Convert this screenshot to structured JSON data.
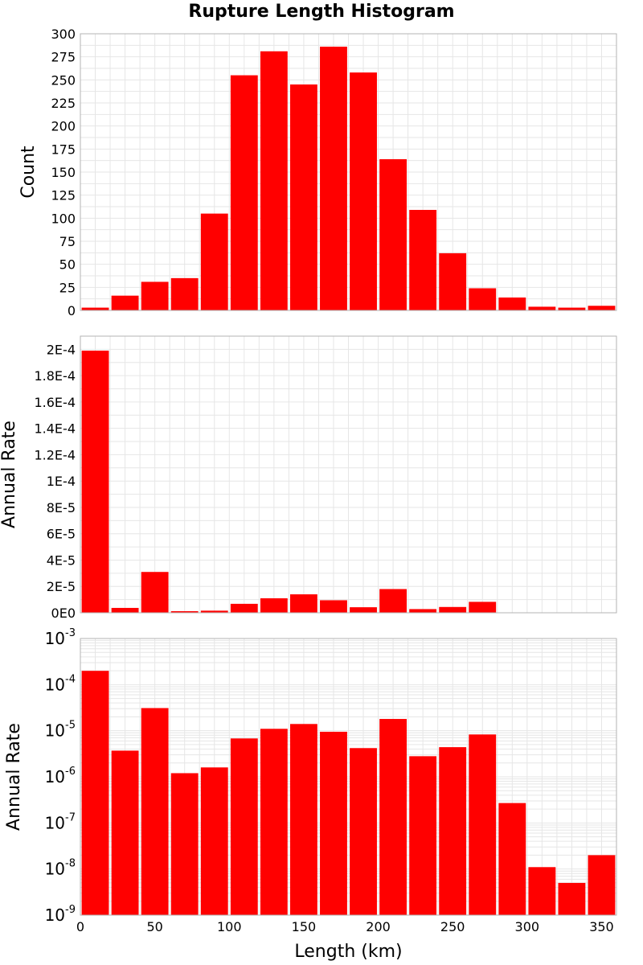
{
  "title": "Rupture Length Histogram",
  "colors": {
    "bar": "#ff0000",
    "grid": "#e6e6e6",
    "frame": "#b3b3b3"
  },
  "chart_data": [
    {
      "type": "bar",
      "panel": "count",
      "ylabel": "Count",
      "xlim": [
        0,
        360
      ],
      "ylim": [
        0,
        300
      ],
      "ytick_labels": [
        "0",
        "25",
        "50",
        "75",
        "100",
        "125",
        "150",
        "175",
        "200",
        "225",
        "250",
        "275",
        "300"
      ],
      "ytick_values": [
        0,
        25,
        50,
        75,
        100,
        125,
        150,
        175,
        200,
        225,
        250,
        275,
        300
      ],
      "bin_width": 20,
      "x": [
        10,
        30,
        50,
        70,
        90,
        110,
        130,
        150,
        170,
        190,
        210,
        230,
        250,
        270,
        290,
        310,
        330,
        350
      ],
      "values": [
        3,
        16,
        31,
        35,
        105,
        255,
        281,
        245,
        286,
        258,
        164,
        109,
        62,
        24,
        14,
        4,
        3,
        5
      ],
      "grid": true
    },
    {
      "type": "bar",
      "panel": "rate-linear",
      "ylabel": "Annual Rate",
      "xlim": [
        0,
        360
      ],
      "ylim": [
        0,
        0.00021
      ],
      "ytick_labels": [
        "0E0",
        "2E-5",
        "4E-5",
        "6E-5",
        "8E-5",
        "1E-4",
        "1.2E-4",
        "1.4E-4",
        "1.6E-4",
        "1.8E-4",
        "2E-4"
      ],
      "ytick_values": [
        0,
        2e-05,
        4e-05,
        6e-05,
        8e-05,
        0.0001,
        0.00012,
        0.00014,
        0.00016,
        0.00018,
        0.0002
      ],
      "bin_width": 20,
      "x": [
        10,
        30,
        50,
        70,
        90,
        110,
        130,
        150,
        170,
        190,
        210,
        230,
        250,
        270,
        290,
        310,
        330,
        350
      ],
      "values": [
        0.000199,
        3.7e-06,
        3.1e-05,
        1.2e-06,
        1.6e-06,
        6.8e-06,
        1.1e-05,
        1.4e-05,
        9.5e-06,
        4.2e-06,
        1.8e-05,
        2.8e-06,
        4.4e-06,
        8.3e-06,
        2.7e-07,
        1.1e-08,
        5e-09,
        2e-08
      ],
      "grid": true
    },
    {
      "type": "bar",
      "panel": "rate-log",
      "ylabel": "Annual Rate",
      "xlabel": "Length (km)",
      "yscale": "log",
      "xlim": [
        0,
        360
      ],
      "ylim": [
        1e-09,
        0.001
      ],
      "ytick_labels": [
        {
          "base": "10",
          "exp": "-9"
        },
        {
          "base": "10",
          "exp": "-8"
        },
        {
          "base": "10",
          "exp": "-7"
        },
        {
          "base": "10",
          "exp": "-6"
        },
        {
          "base": "10",
          "exp": "-5"
        },
        {
          "base": "10",
          "exp": "-4"
        },
        {
          "base": "10",
          "exp": "-3"
        }
      ],
      "ytick_values": [
        1e-09,
        1e-08,
        1e-07,
        1e-06,
        1e-05,
        0.0001,
        0.001
      ],
      "xtick_labels": [
        "0",
        "50",
        "100",
        "150",
        "200",
        "250",
        "300",
        "350"
      ],
      "xtick_values": [
        0,
        50,
        100,
        150,
        200,
        250,
        300,
        350
      ],
      "bin_width": 20,
      "x": [
        10,
        30,
        50,
        70,
        90,
        110,
        130,
        150,
        170,
        190,
        210,
        230,
        250,
        270,
        290,
        310,
        330,
        350
      ],
      "values": [
        0.000199,
        3.7e-06,
        3.1e-05,
        1.2e-06,
        1.6e-06,
        6.8e-06,
        1.1e-05,
        1.4e-05,
        9.5e-06,
        4.2e-06,
        1.8e-05,
        2.8e-06,
        4.4e-06,
        8.3e-06,
        2.7e-07,
        1.1e-08,
        5e-09,
        2e-08
      ],
      "grid": true
    }
  ]
}
